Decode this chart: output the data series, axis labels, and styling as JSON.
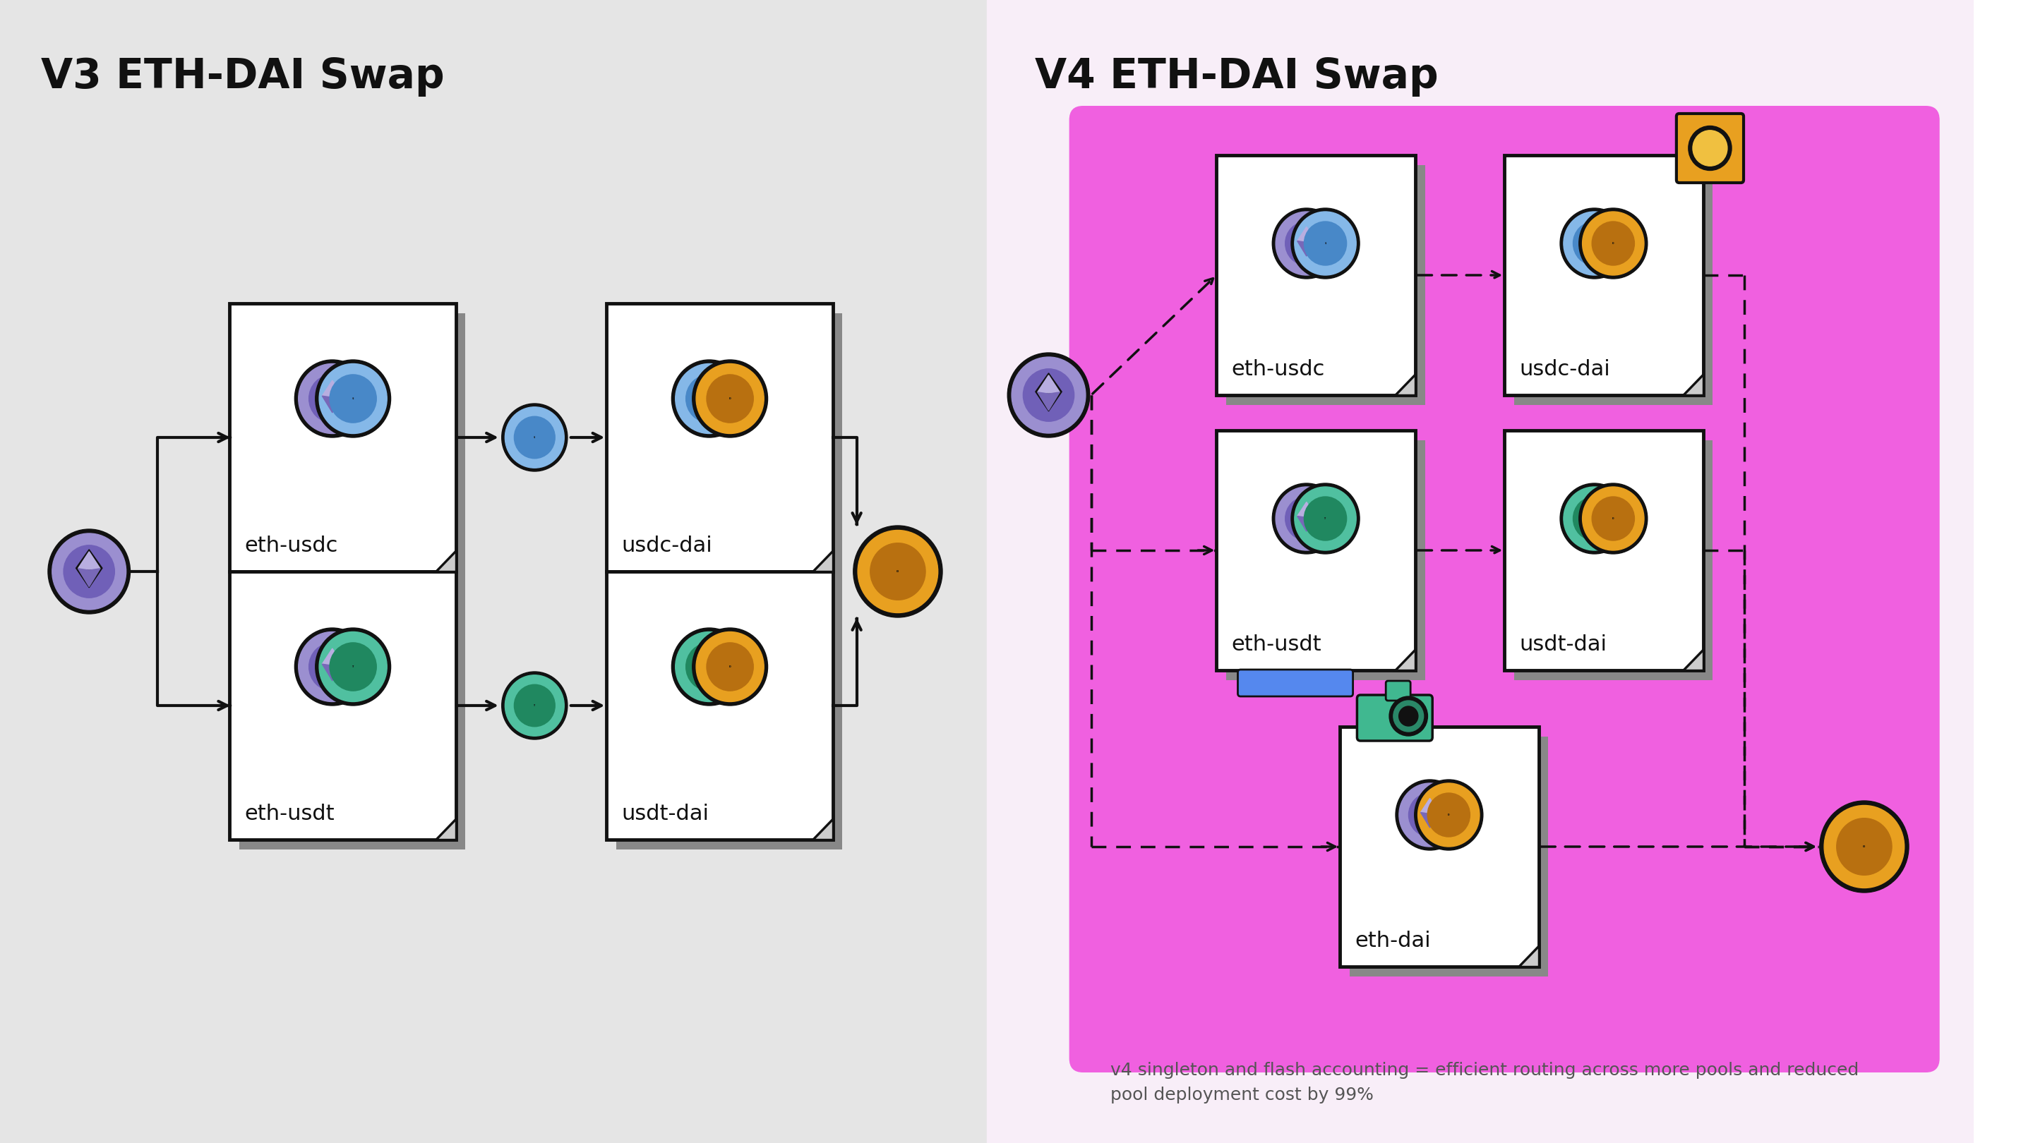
{
  "title_v3": "V3 ETH-DAI Swap",
  "title_v4": "V4 ETH-DAI Swap",
  "bg_left": "#e5e5e5",
  "bg_right": "#f8eef8",
  "pink_box": "#f060e0",
  "white": "#ffffff",
  "black": "#111111",
  "shadow": "#999999",
  "title_fontsize": 42,
  "label_fontsize": 22,
  "eth_color": "#9b8fd0",
  "usdc_color": "#85b8e8",
  "usdt_color": "#50c0a0",
  "dai_color": "#e8a020",
  "eth_inner": "#7060b8",
  "usdc_inner": "#4888c8",
  "usdt_inner": "#208860",
  "dai_inner": "#b87010",
  "hook_color": "#e8a020",
  "blue_bar_color": "#5588ee",
  "green_cam_color": "#40b890",
  "annotation": "v4 singleton and flash accounting = efficient routing across more pools and reduced\npool deployment cost by 99%",
  "annotation_fontsize": 18
}
